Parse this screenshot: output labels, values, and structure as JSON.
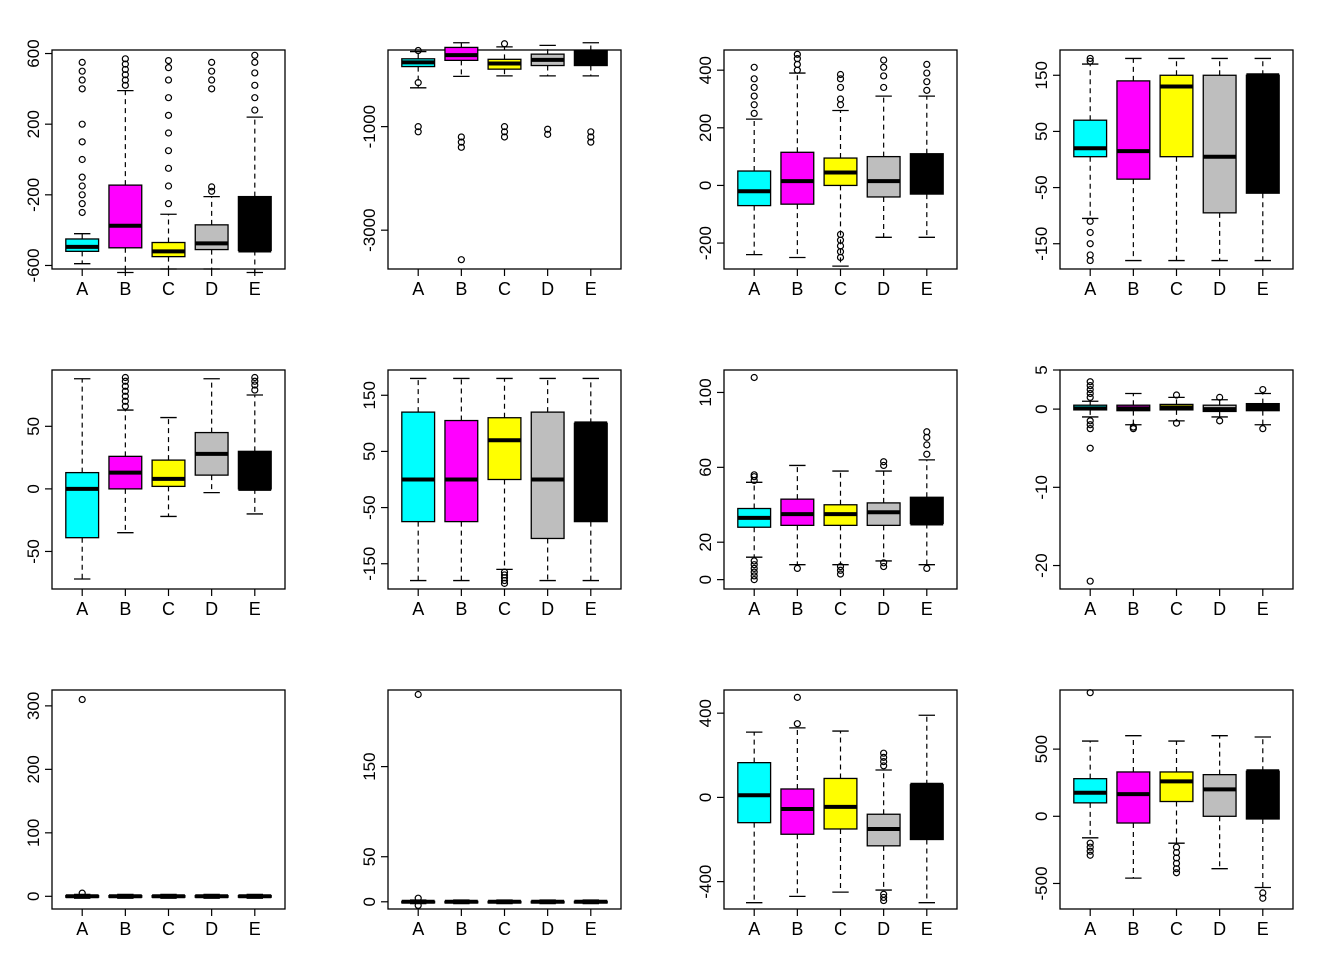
{
  "colors": {
    "A": "#00ffff",
    "B": "#ff00ff",
    "C": "#ffff00",
    "D": "#bebebe",
    "E": "#000000"
  },
  "chart_data": [
    {
      "type": "boxplot",
      "categories": [
        "A",
        "B",
        "C",
        "D",
        "E"
      ],
      "ylim": [
        -620,
        620
      ],
      "yticks": [
        -600,
        -200,
        200,
        600
      ],
      "boxes": [
        {
          "min": -590,
          "q1": -520,
          "median": -495,
          "q3": -450,
          "max": -420,
          "outliers": [
            -300,
            -250,
            -200,
            -150,
            -100,
            0,
            100,
            200,
            400,
            450,
            500,
            550
          ]
        },
        {
          "min": -640,
          "q1": -500,
          "median": -375,
          "q3": -145,
          "max": 390,
          "outliers": [
            420,
            450,
            480,
            510,
            540,
            570
          ]
        },
        {
          "min": -620,
          "q1": -550,
          "median": -520,
          "q3": -470,
          "max": -310,
          "outliers": [
            -250,
            -150,
            -50,
            50,
            150,
            250,
            350,
            450,
            520,
            560
          ]
        },
        {
          "min": -620,
          "q1": -510,
          "median": -475,
          "q3": -370,
          "max": -210,
          "outliers": [
            -180,
            -155,
            400,
            450,
            500,
            550
          ]
        },
        {
          "min": -640,
          "q1": -515,
          "median": -515,
          "q3": -210,
          "max": 240,
          "outliers": [
            280,
            350,
            420,
            490,
            550,
            590
          ]
        }
      ]
    },
    {
      "type": "boxplot",
      "categories": [
        "A",
        "B",
        "C",
        "D",
        "E"
      ],
      "ylim": [
        -3750,
        480
      ],
      "yticks": [
        -3000,
        -1000
      ],
      "boxes": [
        {
          "min": -250,
          "q1": 160,
          "median": 240,
          "q3": 310,
          "max": 450,
          "outliers": [
            470,
            -150,
            -1000,
            -1100
          ]
        },
        {
          "min": -30,
          "q1": 280,
          "median": 380,
          "q3": 530,
          "max": 620,
          "outliers": [
            -1200,
            -1300,
            -1400,
            -3570
          ]
        },
        {
          "min": -20,
          "q1": 110,
          "median": 220,
          "q3": 300,
          "max": 540,
          "outliers": [
            600,
            -1000,
            -1100,
            -1200
          ]
        },
        {
          "min": -20,
          "q1": 180,
          "median": 290,
          "q3": 400,
          "max": 570,
          "outliers": [
            -1050,
            -1150
          ]
        },
        {
          "min": -20,
          "q1": 180,
          "median": 330,
          "q3": 470,
          "max": 620,
          "outliers": [
            -1100,
            -1200,
            -1300
          ]
        }
      ]
    },
    {
      "type": "boxplot",
      "categories": [
        "A",
        "B",
        "C",
        "D",
        "E"
      ],
      "ylim": [
        -290,
        470
      ],
      "yticks": [
        -200,
        0,
        200,
        400
      ],
      "boxes": [
        {
          "min": -240,
          "q1": -70,
          "median": -20,
          "q3": 50,
          "max": 230,
          "outliers": [
            250,
            280,
            310,
            340,
            370,
            410
          ]
        },
        {
          "min": -250,
          "q1": -65,
          "median": 15,
          "q3": 115,
          "max": 390,
          "outliers": [
            400,
            420,
            440,
            455
          ]
        },
        {
          "min": -280,
          "q1": 0,
          "median": 45,
          "q3": 95,
          "max": 260,
          "outliers": [
            -170,
            -190,
            -210,
            -230,
            -250,
            280,
            300,
            340,
            370,
            385
          ]
        },
        {
          "min": -180,
          "q1": -40,
          "median": 15,
          "q3": 100,
          "max": 310,
          "outliers": [
            340,
            380,
            410,
            435
          ]
        },
        {
          "min": -180,
          "q1": -30,
          "median": 35,
          "q3": 110,
          "max": 310,
          "outliers": [
            330,
            360,
            390,
            420
          ]
        }
      ]
    },
    {
      "type": "boxplot",
      "categories": [
        "A",
        "B",
        "C",
        "D",
        "E"
      ],
      "ylim": [
        -195,
        195
      ],
      "yticks": [
        -150,
        -50,
        50,
        150
      ],
      "boxes": [
        {
          "min": -105,
          "q1": 5,
          "median": 20,
          "q3": 70,
          "max": 170,
          "outliers": [
            -110,
            -130,
            -150,
            -170,
            -180,
            175,
            180
          ]
        },
        {
          "min": -180,
          "q1": -35,
          "median": 15,
          "q3": 140,
          "max": 180,
          "outliers": []
        },
        {
          "min": -180,
          "q1": 5,
          "median": 130,
          "q3": 150,
          "max": 180,
          "outliers": []
        },
        {
          "min": -180,
          "q1": -95,
          "median": 5,
          "q3": 150,
          "max": 180,
          "outliers": []
        },
        {
          "min": -180,
          "q1": -60,
          "median": 150,
          "q3": 150,
          "max": 180,
          "outliers": []
        }
      ]
    },
    {
      "type": "boxplot",
      "categories": [
        "A",
        "B",
        "C",
        "D",
        "E"
      ],
      "ylim": [
        -80,
        95
      ],
      "yticks": [
        -50,
        0,
        50
      ],
      "boxes": [
        {
          "min": -72,
          "q1": -39,
          "median": 0,
          "q3": 13,
          "max": 88,
          "outliers": []
        },
        {
          "min": -35,
          "q1": 0,
          "median": 13,
          "q3": 26,
          "max": 63,
          "outliers": [
            66,
            70,
            74,
            78,
            82,
            86,
            89
          ]
        },
        {
          "min": -22,
          "q1": 2,
          "median": 8,
          "q3": 23,
          "max": 57,
          "outliers": []
        },
        {
          "min": -3,
          "q1": 11,
          "median": 28,
          "q3": 45,
          "max": 88,
          "outliers": []
        },
        {
          "min": -20,
          "q1": 0,
          "median": 0,
          "q3": 30,
          "max": 75,
          "outliers": [
            79,
            83,
            86,
            89
          ]
        }
      ]
    },
    {
      "type": "boxplot",
      "categories": [
        "A",
        "B",
        "C",
        "D",
        "E"
      ],
      "ylim": [
        -195,
        195
      ],
      "yticks": [
        -150,
        -50,
        50,
        150
      ],
      "boxes": [
        {
          "min": -180,
          "q1": -75,
          "median": 0,
          "q3": 120,
          "max": 180,
          "outliers": []
        },
        {
          "min": -180,
          "q1": -75,
          "median": 0,
          "q3": 105,
          "max": 180,
          "outliers": []
        },
        {
          "min": -160,
          "q1": 0,
          "median": 70,
          "q3": 110,
          "max": 180,
          "outliers": [
            -165,
            -170,
            -175,
            -180,
            -185
          ]
        },
        {
          "min": -180,
          "q1": -105,
          "median": 0,
          "q3": 120,
          "max": 180,
          "outliers": []
        },
        {
          "min": -180,
          "q1": -75,
          "median": 100,
          "q3": 100,
          "max": 180,
          "outliers": []
        }
      ]
    },
    {
      "type": "boxplot",
      "categories": [
        "A",
        "B",
        "C",
        "D",
        "E"
      ],
      "ylim": [
        -5,
        112
      ],
      "yticks": [
        0,
        20,
        60,
        100
      ],
      "boxes": [
        {
          "min": 12,
          "q1": 28,
          "median": 33,
          "q3": 38,
          "max": 52,
          "outliers": [
            0,
            2,
            4,
            6,
            8,
            10,
            53,
            55,
            56,
            108
          ]
        },
        {
          "min": 8,
          "q1": 29,
          "median": 35,
          "q3": 43,
          "max": 61,
          "outliers": [
            6
          ]
        },
        {
          "min": 8,
          "q1": 29,
          "median": 35,
          "q3": 40,
          "max": 58,
          "outliers": [
            3,
            5,
            7
          ]
        },
        {
          "min": 10,
          "q1": 29,
          "median": 36,
          "q3": 41,
          "max": 58,
          "outliers": [
            7,
            9,
            61,
            63
          ]
        },
        {
          "min": 8,
          "q1": 30,
          "median": 30,
          "q3": 44,
          "max": 64,
          "outliers": [
            6,
            67,
            72,
            76,
            79
          ]
        }
      ]
    },
    {
      "type": "boxplot",
      "categories": [
        "A",
        "B",
        "C",
        "D",
        "E"
      ],
      "ylim": [
        -23,
        5
      ],
      "yticks": [
        -20,
        -10,
        0,
        5
      ],
      "boxes": [
        {
          "min": -1,
          "q1": -0.1,
          "median": 0.1,
          "q3": 0.5,
          "max": 1,
          "outliers": [
            -1.5,
            -2,
            -2.5,
            -5,
            1.5,
            2,
            2.5,
            3,
            3.5,
            -22
          ]
        },
        {
          "min": -2,
          "q1": -0.2,
          "median": 0.1,
          "q3": 0.5,
          "max": 2,
          "outliers": [
            -2.3,
            -2.5
          ]
        },
        {
          "min": -1.5,
          "q1": -0.1,
          "median": 0.2,
          "q3": 0.6,
          "max": 1.5,
          "outliers": [
            -1.8,
            1.8
          ]
        },
        {
          "min": -1,
          "q1": -0.3,
          "median": 0,
          "q3": 0.5,
          "max": 1.2,
          "outliers": [
            -1.5,
            1.5
          ]
        },
        {
          "min": -2,
          "q1": -0.2,
          "median": 0.2,
          "q3": 0.7,
          "max": 2,
          "outliers": [
            -2.5,
            2.5
          ]
        }
      ]
    },
    {
      "type": "boxplot",
      "categories": [
        "A",
        "B",
        "C",
        "D",
        "E"
      ],
      "ylim": [
        -20,
        325
      ],
      "yticks": [
        0,
        100,
        200,
        300
      ],
      "boxes": [
        {
          "min": -3,
          "q1": -1,
          "median": 0,
          "q3": 1,
          "max": 3,
          "outliers": [
            5,
            310
          ]
        },
        {
          "min": -3,
          "q1": -1,
          "median": 0,
          "q3": 1,
          "max": 3,
          "outliers": []
        },
        {
          "min": -3,
          "q1": -1,
          "median": 0,
          "q3": 1,
          "max": 3,
          "outliers": []
        },
        {
          "min": -3,
          "q1": -1,
          "median": 0,
          "q3": 1,
          "max": 3,
          "outliers": []
        },
        {
          "min": -3,
          "q1": -1,
          "median": 0,
          "q3": 1,
          "max": 3,
          "outliers": []
        }
      ]
    },
    {
      "type": "boxplot",
      "categories": [
        "A",
        "B",
        "C",
        "D",
        "E"
      ],
      "ylim": [
        -8,
        235
      ],
      "yticks": [
        0,
        50,
        150
      ],
      "boxes": [
        {
          "min": -2,
          "q1": -0.5,
          "median": 0,
          "q3": 0.5,
          "max": 2,
          "outliers": [
            -4,
            4,
            230
          ]
        },
        {
          "min": -2,
          "q1": -0.5,
          "median": 0,
          "q3": 0.5,
          "max": 2,
          "outliers": []
        },
        {
          "min": -2,
          "q1": -0.5,
          "median": 0,
          "q3": 0.5,
          "max": 2,
          "outliers": []
        },
        {
          "min": -2,
          "q1": -0.5,
          "median": 0,
          "q3": 0.5,
          "max": 2,
          "outliers": []
        },
        {
          "min": -2,
          "q1": -0.5,
          "median": 0,
          "q3": 0.5,
          "max": 2,
          "outliers": []
        }
      ]
    },
    {
      "type": "boxplot",
      "categories": [
        "A",
        "B",
        "C",
        "D",
        "E"
      ],
      "ylim": [
        -530,
        510
      ],
      "yticks": [
        -400,
        0,
        400
      ],
      "boxes": [
        {
          "min": -500,
          "q1": -120,
          "median": 10,
          "q3": 165,
          "max": 310,
          "outliers": []
        },
        {
          "min": -470,
          "q1": -175,
          "median": -55,
          "q3": 40,
          "max": 330,
          "outliers": [
            350,
            475
          ]
        },
        {
          "min": -450,
          "q1": -150,
          "median": -45,
          "q3": 90,
          "max": 315,
          "outliers": []
        },
        {
          "min": -440,
          "q1": -230,
          "median": -150,
          "q3": -80,
          "max": 130,
          "outliers": [
            150,
            170,
            190,
            210,
            -460,
            -475,
            -490
          ]
        },
        {
          "min": -500,
          "q1": -200,
          "median": 60,
          "q3": 60,
          "max": 390,
          "outliers": []
        }
      ]
    },
    {
      "type": "boxplot",
      "categories": [
        "A",
        "B",
        "C",
        "D",
        "E"
      ],
      "ylim": [
        -690,
        940
      ],
      "yticks": [
        -500,
        0,
        500
      ],
      "boxes": [
        {
          "min": -160,
          "q1": 100,
          "median": 175,
          "q3": 280,
          "max": 560,
          "outliers": [
            -200,
            -230,
            -260,
            -290,
            920
          ]
        },
        {
          "min": -460,
          "q1": -50,
          "median": 165,
          "q3": 330,
          "max": 600,
          "outliers": []
        },
        {
          "min": -200,
          "q1": 110,
          "median": 260,
          "q3": 330,
          "max": 560,
          "outliers": [
            -230,
            -270,
            -310,
            -350,
            -390,
            -420
          ]
        },
        {
          "min": -390,
          "q1": 0,
          "median": 200,
          "q3": 310,
          "max": 600,
          "outliers": []
        },
        {
          "min": -530,
          "q1": -20,
          "median": 335,
          "q3": 335,
          "max": 590,
          "outliers": [
            -570,
            -610
          ]
        }
      ]
    }
  ]
}
